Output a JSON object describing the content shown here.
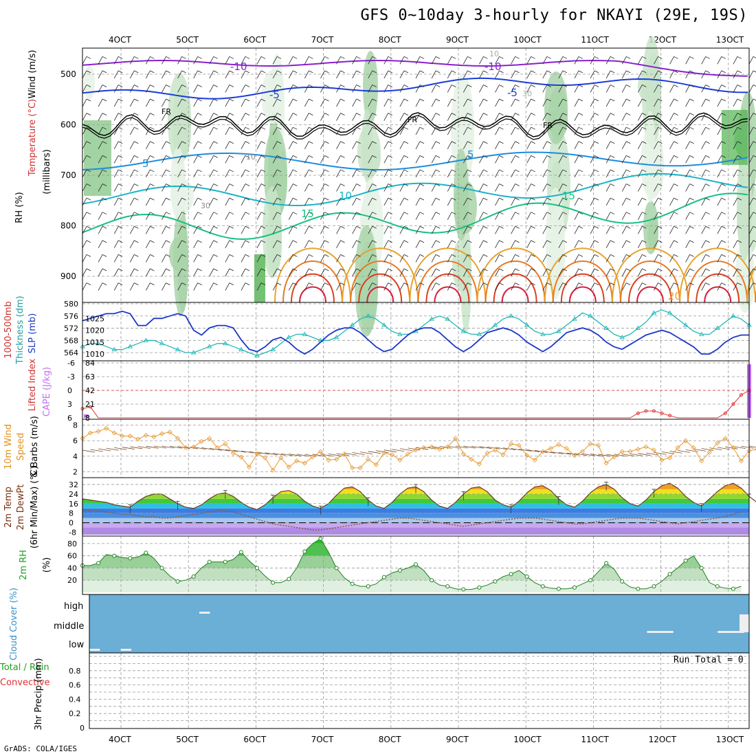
{
  "title": "GFS 0~10day 3-hourly for NKAYI (29E, 19S)",
  "credit": "GrADS: COLA/IGES",
  "colors": {
    "rh_green": "#3cc83c",
    "temp_purple": "#8a1fd0",
    "temp_blue": "#1a3cd8",
    "wind": "#e07a10",
    "cloud_bg": "#6baed6",
    "slp": "#1a36c8",
    "thick": "#20b8b8",
    "li": "#e03030",
    "cape": "#c070f0",
    "gust": "#e8962c",
    "barb": "#7a4a24"
  },
  "chart_data": {
    "type": "meteogram",
    "x_ticks": [
      "4OCT",
      "5OCT",
      "6OCT",
      "7OCT",
      "8OCT",
      "9OCT",
      "10OCT",
      "11OCT",
      "12OCT",
      "13OCT"
    ],
    "panels": [
      {
        "id": "upper",
        "label_parts": [
          "RH (%)",
          "Temperature (°C)",
          "Wind (m/s)"
        ],
        "ylabel": "(millibars)",
        "y_ticks": [
          500,
          600,
          700,
          800,
          900
        ],
        "contour_labels": [
          "-10",
          "-10",
          "-5",
          "-5",
          "FR",
          "FR",
          "FR",
          "5",
          "5",
          "10",
          "15",
          "15",
          "20",
          "10",
          "30",
          "30",
          "10"
        ]
      },
      {
        "id": "slp_thick",
        "label_parts": [
          "1000-500mb",
          "Thickness (dm)",
          "SLP (mb)"
        ],
        "left_ticks": [
          564,
          568,
          572,
          576,
          580
        ],
        "right_ticks": [
          1010,
          1015,
          1020,
          1025
        ],
        "slp": [
          1024,
          1025,
          1026,
          1027,
          1027,
          1028,
          1027,
          1022,
          1022,
          1025,
          1025,
          1026,
          1027,
          1026,
          1020,
          1018,
          1021,
          1022,
          1022,
          1021,
          1016,
          1012,
          1011,
          1013,
          1016,
          1017,
          1015,
          1012,
          1010,
          1012,
          1015,
          1018,
          1020,
          1021,
          1021,
          1019,
          1016,
          1013,
          1011,
          1012,
          1015,
          1018,
          1020,
          1021,
          1021,
          1019,
          1016,
          1013,
          1011,
          1013,
          1016,
          1019,
          1020,
          1021,
          1020,
          1018,
          1015,
          1013,
          1011,
          1013,
          1016,
          1019,
          1020,
          1021,
          1020,
          1018,
          1015,
          1013,
          1012,
          1014,
          1016,
          1018,
          1019,
          1020,
          1019,
          1017,
          1015,
          1013,
          1010,
          1010,
          1012,
          1015,
          1017,
          1018,
          1018
        ],
        "thickness": [
          566,
          567,
          567,
          566,
          565,
          565,
          566,
          567,
          568,
          568,
          567,
          566,
          565,
          564,
          564,
          565,
          566,
          567,
          567,
          566,
          565,
          564,
          563,
          564,
          565,
          567,
          569,
          570,
          570,
          569,
          568,
          568,
          569,
          571,
          573,
          575,
          576,
          575,
          573,
          571,
          570,
          570,
          571,
          573,
          575,
          576,
          575,
          573,
          571,
          570,
          570,
          571,
          573,
          575,
          576,
          575,
          573,
          571,
          570,
          570,
          571,
          573,
          575,
          577,
          576,
          574,
          572,
          570,
          569,
          570,
          572,
          574,
          577,
          578,
          577,
          575,
          573,
          571,
          570,
          570,
          572,
          574,
          576,
          575,
          573
        ]
      },
      {
        "id": "li_cape",
        "label_parts": [
          "Lifted Index",
          "CAPE (J/kg)"
        ],
        "left_ticks": [
          "6",
          "3",
          "0",
          "-3",
          "-6"
        ],
        "right_ticks": [
          "8",
          "21",
          "42",
          "63",
          "84"
        ],
        "lifted_index": [
          4.0,
          3.6,
          6,
          6,
          6,
          6,
          6,
          6,
          6,
          6,
          6,
          6,
          6,
          6,
          6,
          6,
          6,
          6,
          6,
          6,
          6,
          6,
          6,
          6,
          6,
          6,
          6,
          6,
          6,
          6,
          6,
          6,
          6,
          6,
          6,
          6,
          6,
          6,
          6,
          6,
          6,
          6,
          6,
          6,
          6,
          6,
          6,
          6,
          6,
          6,
          6,
          6,
          6,
          6,
          6,
          6,
          6,
          6,
          6,
          6,
          6,
          6,
          6,
          6,
          6,
          6,
          6,
          6,
          6,
          6,
          5,
          4.5,
          4.5,
          5,
          5.5,
          6,
          6,
          6,
          6,
          6,
          6,
          5,
          3,
          1,
          0
        ],
        "cape": [
          8,
          8,
          8,
          8,
          8,
          8,
          8,
          8,
          8,
          8,
          8,
          8,
          8,
          8,
          8,
          8,
          8,
          8,
          8,
          8,
          8,
          8,
          8,
          8,
          8,
          8,
          8,
          8,
          8,
          8,
          8,
          8,
          8,
          8,
          8,
          8,
          8,
          8,
          8,
          8,
          8,
          8,
          8,
          8,
          8,
          8,
          8,
          8,
          8,
          8,
          8,
          8,
          8,
          8,
          8,
          8,
          8,
          8,
          8,
          8,
          8,
          8,
          8,
          8,
          8,
          8,
          8,
          8,
          8,
          8,
          8,
          8,
          8,
          8,
          8,
          8,
          8,
          8,
          8,
          8,
          8,
          8,
          8,
          8,
          84
        ]
      },
      {
        "id": "wind10m",
        "label_parts": [
          "10m Wind",
          "Speed",
          "& Barbs (m/s)"
        ],
        "y_ticks": [
          2,
          4,
          6,
          8
        ],
        "speed": [
          6.3,
          7.0,
          7.2,
          7.6,
          7.0,
          6.6,
          6.6,
          6.2,
          6.7,
          6.5,
          6.9,
          7.1,
          6.3,
          5.1,
          5.2,
          5.9,
          6.3,
          5.1,
          5.6,
          4.4,
          3.9,
          2.6,
          4.3,
          3.8,
          2.2,
          3.8,
          2.6,
          3.4,
          3.1,
          3.9,
          4.6,
          3.5,
          3.6,
          4.3,
          2.5,
          2.5,
          3.6,
          2.9,
          4.4,
          4.2,
          3.5,
          4.3,
          4.8,
          5.1,
          5.2,
          4.9,
          5.2,
          6.3,
          4.3,
          3.6,
          3.0,
          4.4,
          4.8,
          4.2,
          5.6,
          5.4,
          4.1,
          3.5,
          4.6,
          5.0,
          5.5,
          5.0,
          4.1,
          4.6,
          5.6,
          5.4,
          3.1,
          3.9,
          4.6,
          4.6,
          4.9,
          5.2,
          4.8,
          3.5,
          3.8,
          5.1,
          6.0,
          5.1,
          3.4,
          4.5,
          5.7,
          6.3,
          5.1,
          3.4,
          4.7,
          4.9,
          2.8,
          4.2,
          4.9
        ]
      },
      {
        "id": "temp2m",
        "label_parts": [
          "2m Temp",
          "2m DewPt",
          "(6hr Min/Max) (°C)"
        ],
        "y_ticks": [
          -8,
          0,
          8,
          16,
          24,
          32
        ],
        "temp": [
          20,
          19,
          18,
          17,
          15,
          14,
          13,
          18,
          22,
          24,
          24,
          20,
          16,
          13,
          12,
          15,
          20,
          24,
          25,
          22,
          17,
          13,
          11,
          15,
          21,
          26,
          27,
          24,
          18,
          14,
          12,
          16,
          23,
          29,
          30,
          26,
          19,
          14,
          12,
          17,
          24,
          29,
          30,
          26,
          19,
          14,
          12,
          17,
          24,
          29,
          30,
          26,
          19,
          15,
          13,
          18,
          25,
          30,
          31,
          27,
          20,
          15,
          13,
          18,
          25,
          30,
          32,
          28,
          21,
          16,
          14,
          19,
          26,
          31,
          33,
          29,
          22,
          17,
          14,
          20,
          26,
          31,
          33,
          29,
          22,
          17,
          15,
          21
        ],
        "dewpoint": [
          11,
          10,
          10,
          9,
          8,
          7,
          7,
          6,
          5,
          5,
          4,
          4,
          5,
          6,
          7,
          8,
          9,
          10,
          10,
          9,
          7,
          5,
          3,
          1,
          -1,
          -2,
          -3,
          -4,
          -5,
          -6,
          -6,
          -5,
          -4,
          -3,
          -2,
          -1,
          0,
          1,
          2,
          3,
          4,
          4,
          3,
          2,
          1,
          0,
          -1,
          -2,
          -3,
          -2,
          -1,
          0,
          1,
          2,
          3,
          4,
          4,
          4,
          3,
          2,
          1,
          0,
          -1,
          -1,
          0,
          1,
          2,
          3,
          4,
          4,
          4,
          3,
          2,
          1,
          0,
          -1,
          0,
          1,
          2,
          3,
          4,
          5,
          7,
          9
        ]
      },
      {
        "id": "rh2m",
        "label_parts": [
          "2m RH",
          "(%)"
        ],
        "y_ticks": [
          20,
          40,
          60,
          80
        ],
        "rh": [
          44,
          44,
          48,
          62,
          60,
          57,
          56,
          58,
          65,
          56,
          40,
          27,
          18,
          20,
          26,
          40,
          50,
          50,
          50,
          54,
          66,
          52,
          40,
          27,
          16,
          16,
          22,
          40,
          67,
          80,
          88,
          66,
          40,
          24,
          14,
          10,
          10,
          14,
          25,
          32,
          36,
          40,
          46,
          36,
          20,
          12,
          10,
          6,
          5,
          5,
          8,
          12,
          18,
          26,
          30,
          36,
          26,
          16,
          10,
          7,
          6,
          6,
          8,
          14,
          20,
          34,
          48,
          38,
          18,
          9,
          6,
          6,
          10,
          18,
          30,
          40,
          52,
          60,
          40,
          16,
          10,
          7,
          6,
          10
        ]
      },
      {
        "id": "cloud",
        "label_parts": [
          "Cloud Cover (%)"
        ],
        "y_ticks": [
          "low",
          "middle",
          "high"
        ],
        "high_blips": [
          [
            14,
            15
          ]
        ],
        "mid_blips": [
          [
            71,
            74
          ],
          [
            80,
            83
          ],
          [
            87,
            88
          ]
        ],
        "low_blips": [
          [
            0,
            1
          ],
          [
            4,
            5
          ]
        ]
      },
      {
        "id": "precip",
        "label_parts": [
          "Total / Rain",
          "Convective",
          "3hr Precip (mm)"
        ],
        "y_ticks": [
          "0",
          "0.2",
          "0.4",
          "0.6",
          "0.8"
        ],
        "values": [
          0,
          0,
          0,
          0,
          0,
          0,
          0,
          0,
          0,
          0
        ],
        "annotation": "Run Total = 0"
      }
    ]
  }
}
